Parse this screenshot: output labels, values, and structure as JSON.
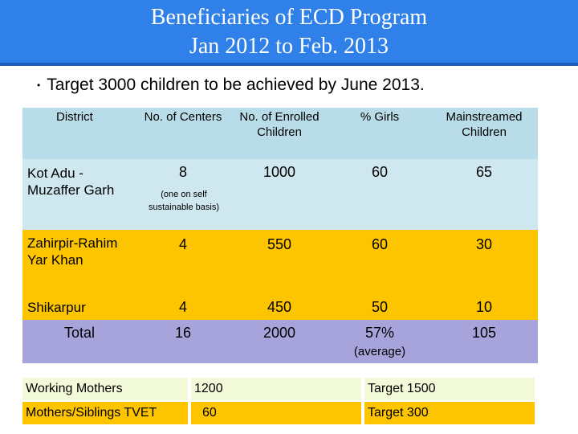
{
  "title": {
    "line1": "Beneficiaries of ECD Program",
    "line2": "Jan 2012 to  Feb. 2013"
  },
  "bullet": {
    "glyph": "•",
    "text": "Target 3000 children to be achieved by June 2013."
  },
  "table": {
    "headers": [
      "District",
      "No. of Centers",
      "No. of Enrolled Children",
      "% Girls",
      "Mainstreamed Children"
    ],
    "rows": [
      {
        "district": "Kot Adu - Muzaffer Garh",
        "centers": "8",
        "centers_note": "(one on self sustainable basis)",
        "enrolled": "1000",
        "girls": "60",
        "mainstreamed": "65"
      },
      {
        "district": "Zahirpir-Rahim Yar Khan",
        "centers": "4",
        "enrolled": "550",
        "girls": "60",
        "mainstreamed": "30"
      },
      {
        "district": "Shikarpur",
        "centers": "4",
        "enrolled": "450",
        "girls": "50",
        "mainstreamed": "10"
      },
      {
        "district": "Total",
        "centers": "16",
        "enrolled": "2000",
        "girls": "57%",
        "girls_note": "(average)",
        "mainstreamed": "105"
      }
    ]
  },
  "bottom": [
    {
      "label": "Working Mothers",
      "value": "1200",
      "target": "Target 1500"
    },
    {
      "label": "Mothers/Siblings TVET",
      "value": "60",
      "target": "Target 300"
    }
  ],
  "colors": {
    "title_bg": "#2f80e8",
    "header_bg": "#b9dde8",
    "row1_bg": "#cfe7ef",
    "orange": "#fdc400",
    "purple": "#a7a4dc",
    "green": "#f3fad9"
  }
}
